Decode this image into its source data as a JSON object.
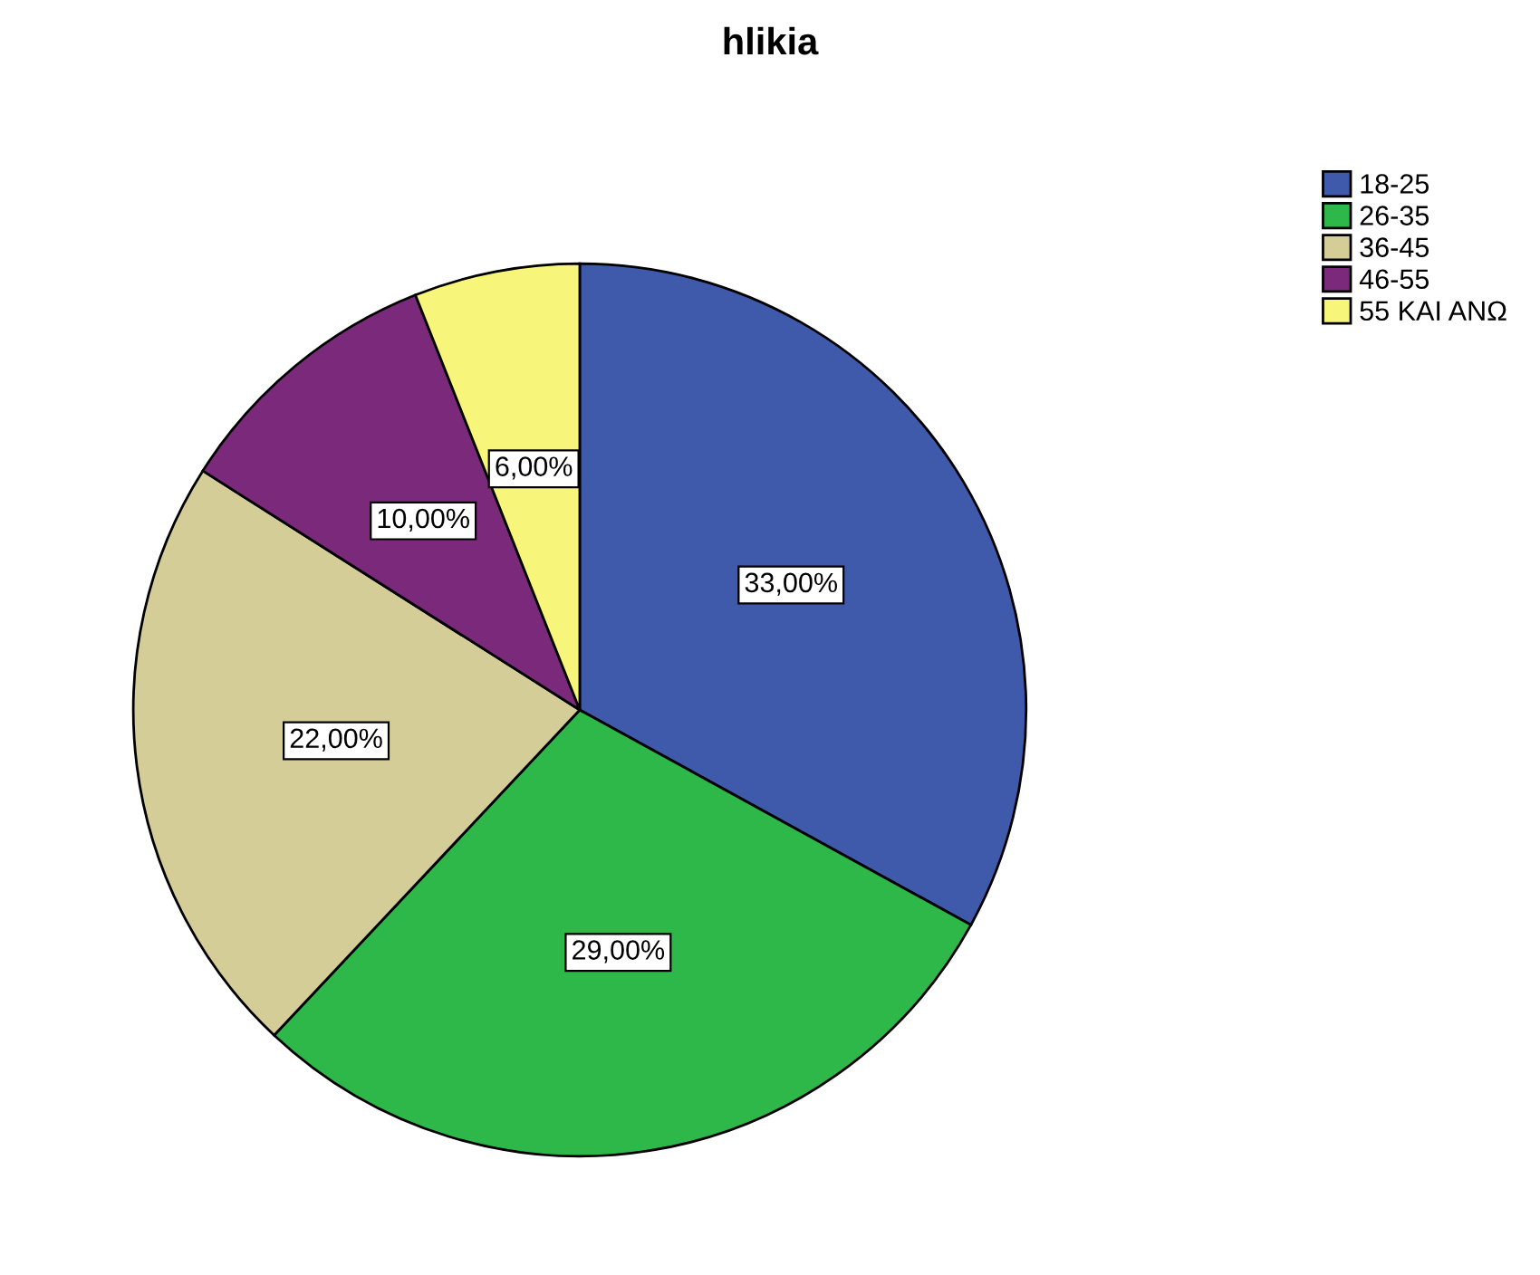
{
  "chart_data": {
    "type": "pie",
    "title": "hlikia",
    "categories": [
      "18-25",
      "26-35",
      "36-45",
      "46-55",
      "55 ΚΑΙ ΑΝΩ"
    ],
    "values": [
      33,
      29,
      22,
      10,
      6
    ],
    "value_labels": [
      "33,00%",
      "29,00%",
      "22,00%",
      "10,00%",
      "6,00%"
    ],
    "colors": [
      "#3f5aaa",
      "#2eb84a",
      "#d4cd98",
      "#7b2a7b",
      "#f8f67a"
    ],
    "legend": "top right"
  }
}
